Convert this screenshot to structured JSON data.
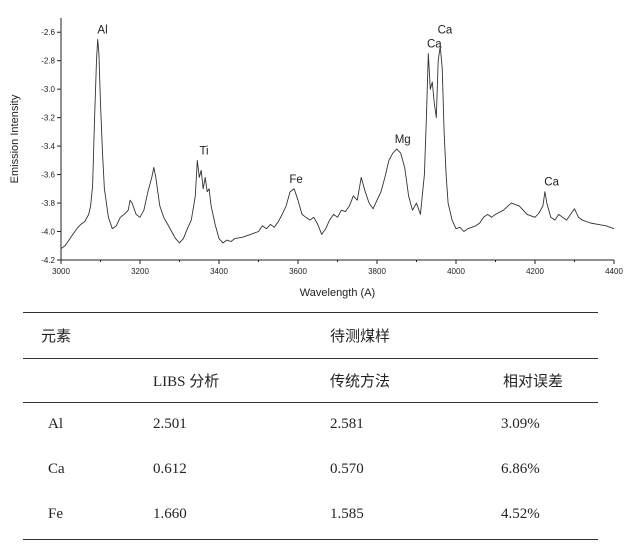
{
  "chart_data": {
    "type": "line",
    "xlabel": "Wavelength  (A)",
    "ylabel": "Emission Intensity",
    "xlim": [
      3000,
      4400
    ],
    "ylim": [
      -4.2,
      -2.5
    ],
    "xticks": [
      3000,
      3200,
      3400,
      3600,
      3800,
      4000,
      4200,
      4400
    ],
    "yticks": [
      -2.6,
      -2.8,
      -3.0,
      -3.2,
      -3.4,
      -3.6,
      -3.8,
      -4.0,
      -4.2
    ],
    "series": [
      {
        "x": [
          3000,
          3010,
          3020,
          3030,
          3040,
          3050,
          3060,
          3070,
          3075,
          3080,
          3085,
          3090,
          3093,
          3096,
          3100,
          3105,
          3110,
          3120,
          3130,
          3140,
          3150,
          3160,
          3170,
          3175,
          3180,
          3190,
          3200,
          3210,
          3220,
          3230,
          3235,
          3240,
          3245,
          3250,
          3260,
          3270,
          3280,
          3290,
          3300,
          3310,
          3320,
          3330,
          3340,
          3345,
          3350,
          3355,
          3360,
          3365,
          3370,
          3375,
          3380,
          3390,
          3400,
          3410,
          3420,
          3430,
          3440,
          3460,
          3480,
          3500,
          3510,
          3520,
          3530,
          3540,
          3550,
          3560,
          3570,
          3580,
          3590,
          3600,
          3610,
          3620,
          3630,
          3640,
          3650,
          3660,
          3670,
          3680,
          3690,
          3700,
          3710,
          3720,
          3730,
          3740,
          3750,
          3760,
          3770,
          3780,
          3790,
          3800,
          3810,
          3820,
          3830,
          3840,
          3850,
          3860,
          3870,
          3880,
          3890,
          3900,
          3910,
          3920,
          3925,
          3930,
          3935,
          3940,
          3945,
          3950,
          3955,
          3960,
          3965,
          3970,
          3975,
          3980,
          3990,
          4000,
          4010,
          4020,
          4030,
          4040,
          4050,
          4060,
          4070,
          4080,
          4090,
          4100,
          4120,
          4140,
          4160,
          4180,
          4200,
          4210,
          4220,
          4225,
          4230,
          4240,
          4250,
          4260,
          4270,
          4280,
          4290,
          4300,
          4310,
          4320,
          4340,
          4360,
          4380,
          4390,
          4400
        ],
        "values": [
          -4.12,
          -4.1,
          -4.06,
          -4.02,
          -3.98,
          -3.95,
          -3.93,
          -3.88,
          -3.82,
          -3.68,
          -3.2,
          -2.8,
          -2.65,
          -2.75,
          -3.1,
          -3.45,
          -3.7,
          -3.9,
          -3.98,
          -3.96,
          -3.9,
          -3.88,
          -3.85,
          -3.78,
          -3.8,
          -3.88,
          -3.9,
          -3.85,
          -3.72,
          -3.62,
          -3.55,
          -3.62,
          -3.72,
          -3.82,
          -3.9,
          -3.95,
          -4.0,
          -4.05,
          -4.08,
          -4.05,
          -3.98,
          -3.92,
          -3.75,
          -3.5,
          -3.62,
          -3.57,
          -3.7,
          -3.62,
          -3.72,
          -3.7,
          -3.82,
          -3.95,
          -4.05,
          -4.08,
          -4.06,
          -4.07,
          -4.05,
          -4.04,
          -4.02,
          -4.0,
          -3.96,
          -3.98,
          -3.95,
          -3.97,
          -3.93,
          -3.88,
          -3.82,
          -3.72,
          -3.7,
          -3.78,
          -3.88,
          -3.9,
          -3.92,
          -3.9,
          -3.95,
          -4.02,
          -3.98,
          -3.92,
          -3.88,
          -3.9,
          -3.85,
          -3.86,
          -3.82,
          -3.75,
          -3.78,
          -3.62,
          -3.72,
          -3.8,
          -3.84,
          -3.78,
          -3.72,
          -3.62,
          -3.5,
          -3.45,
          -3.42,
          -3.45,
          -3.55,
          -3.75,
          -3.85,
          -3.8,
          -3.88,
          -3.6,
          -3.2,
          -2.75,
          -3.0,
          -2.95,
          -3.1,
          -3.2,
          -2.8,
          -2.7,
          -2.85,
          -3.3,
          -3.6,
          -3.8,
          -3.92,
          -3.98,
          -3.97,
          -4.0,
          -3.98,
          -3.97,
          -3.96,
          -3.94,
          -3.9,
          -3.88,
          -3.9,
          -3.88,
          -3.85,
          -3.8,
          -3.82,
          -3.88,
          -3.9,
          -3.87,
          -3.82,
          -3.72,
          -3.8,
          -3.9,
          -3.92,
          -3.88,
          -3.9,
          -3.92,
          -3.88,
          -3.84,
          -3.9,
          -3.92,
          -3.94,
          -3.95,
          -3.96,
          -3.97,
          -3.98
        ]
      }
    ],
    "annotations": [
      {
        "text": "Al",
        "x": 3095,
        "y": -2.65
      },
      {
        "text": "Ti",
        "x": 3352,
        "y": -3.5
      },
      {
        "text": "Fe",
        "x": 3585,
        "y": -3.7
      },
      {
        "text": "Mg",
        "x": 3855,
        "y": -3.42
      },
      {
        "text": "Ca",
        "x": 3935,
        "y": -2.75
      },
      {
        "text": "Ca",
        "x": 3962,
        "y": -2.65
      },
      {
        "text": "Ca",
        "x": 4232,
        "y": -3.72
      }
    ]
  },
  "table": {
    "header_left": "元素",
    "header_group": "待测煤样",
    "subheaders": [
      "LIBS 分析",
      "传统方法",
      "相对误差"
    ],
    "rows": [
      {
        "element": "Al",
        "libs": "2.501",
        "traditional": "2.581",
        "error": "3.09%"
      },
      {
        "element": "Ca",
        "libs": "0.612",
        "traditional": "0.570",
        "error": "6.86%"
      },
      {
        "element": "Fe",
        "libs": "1.660",
        "traditional": "1.585",
        "error": "4.52%"
      }
    ]
  }
}
